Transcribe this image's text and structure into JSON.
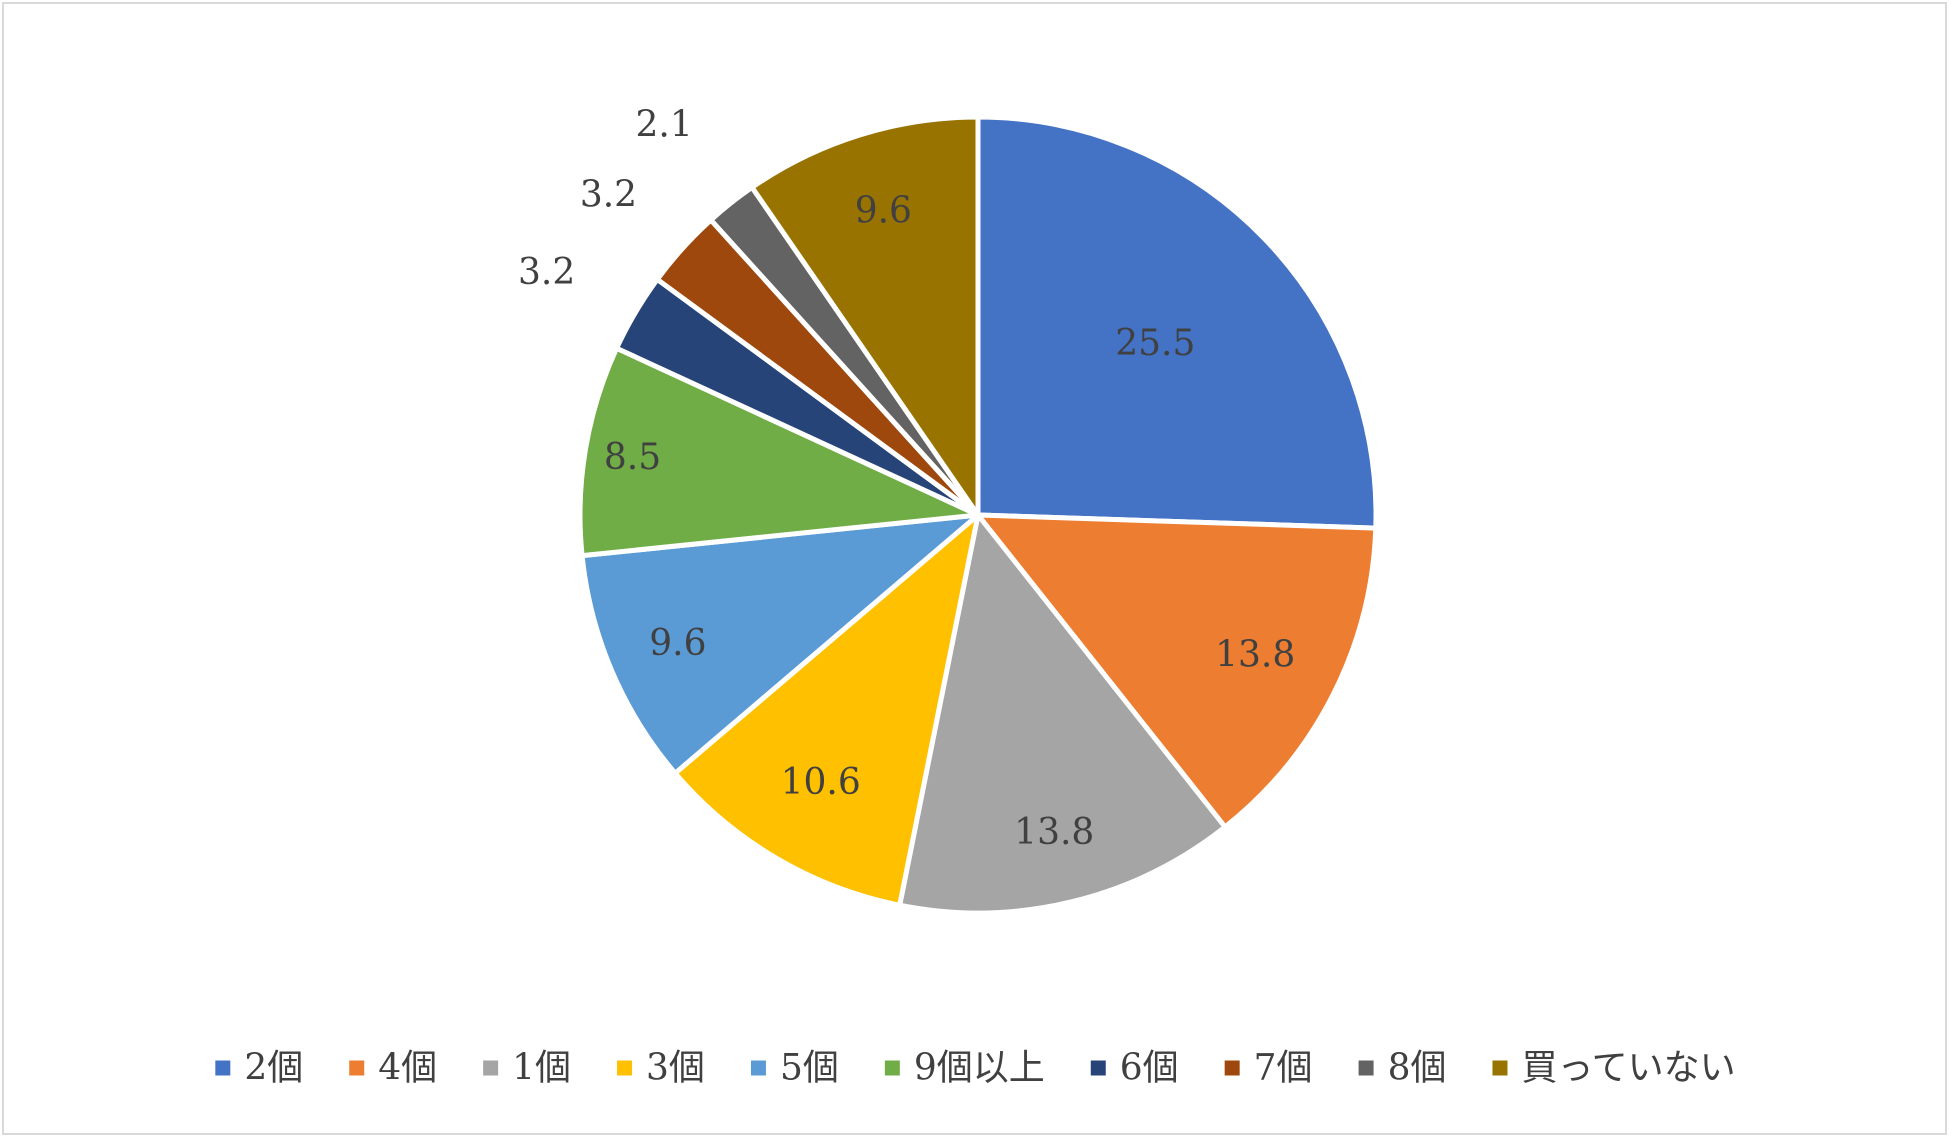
{
  "chart_data": {
    "type": "pie",
    "title": "",
    "categories": [
      "2個",
      "4個",
      "1個",
      "3個",
      "5個",
      "9個以上",
      "6個",
      "7個",
      "8個",
      "買っていない"
    ],
    "values": [
      25.5,
      13.8,
      13.8,
      10.6,
      9.6,
      8.5,
      3.2,
      3.2,
      2.1,
      9.6
    ],
    "data_labels": [
      "25.5",
      "13.8",
      "13.8",
      "10.6",
      "9.6",
      "8.5",
      "3.2",
      "3.2",
      "2.1",
      "9.6"
    ],
    "colors": [
      "#4472c4",
      "#ed7d31",
      "#a5a5a5",
      "#ffc000",
      "#5b9bd5",
      "#70ad47",
      "#264478",
      "#9e480e",
      "#636363",
      "#997300"
    ],
    "legend_position": "bottom",
    "start_angle": "12 o'clock",
    "direction": "clockwise"
  }
}
